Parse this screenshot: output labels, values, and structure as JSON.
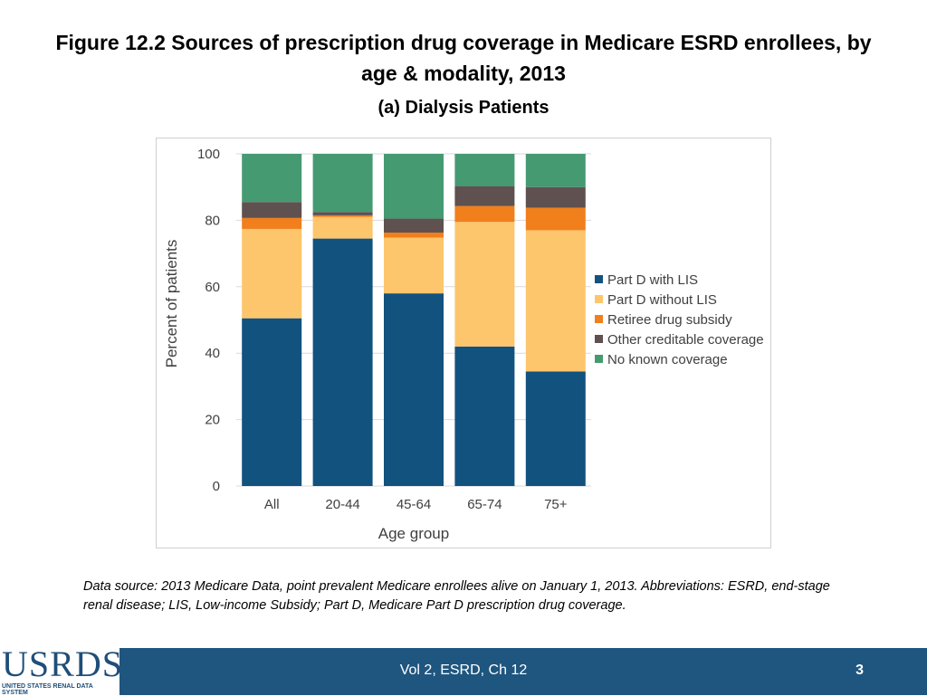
{
  "header": {
    "title": "Figure 12.2 Sources of prescription drug coverage in Medicare ESRD enrollees, by age & modality, 2013",
    "subtitle": "(a) Dialysis Patients"
  },
  "chart_data": {
    "type": "bar",
    "stacked": true,
    "categories": [
      "All",
      "20-44",
      "45-64",
      "65-74",
      "75+"
    ],
    "series": [
      {
        "name": "Part D with LIS",
        "color": "#12527f",
        "values": [
          50.5,
          74.5,
          58.0,
          42.0,
          34.5
        ]
      },
      {
        "name": "Part D without LIS",
        "color": "#fdc56c",
        "values": [
          26.9,
          6.5,
          16.8,
          37.5,
          42.5
        ]
      },
      {
        "name": "Retiree drug subsidy",
        "color": "#f07f1c",
        "values": [
          3.3,
          0.5,
          1.5,
          4.8,
          6.8
        ]
      },
      {
        "name": "Other creditable coverage",
        "color": "#5e5150",
        "values": [
          4.8,
          1.0,
          4.2,
          6.0,
          6.2
        ]
      },
      {
        "name": "No known coverage",
        "color": "#459a72",
        "values": [
          14.5,
          17.5,
          19.5,
          9.7,
          10.0
        ]
      }
    ],
    "xlabel": "Age group",
    "ylabel": "Percent of patients",
    "ylim": [
      0,
      100
    ],
    "yticks": [
      0,
      20,
      40,
      60,
      80,
      100
    ],
    "grid": true,
    "legend_position": "right"
  },
  "source_note": "Data source: 2013 Medicare Data, point prevalent Medicare enrollees alive on January 1, 2013. Abbreviations: ESRD, end-stage renal disease; LIS, Low-income Subsidy; Part D, Medicare Part D prescription drug coverage.",
  "footer": {
    "logo_text": "USRDS",
    "logo_subtext": "UNITED STATES RENAL DATA SYSTEM",
    "center_label": "Vol 2, ESRD, Ch 12",
    "page_number": "3"
  }
}
